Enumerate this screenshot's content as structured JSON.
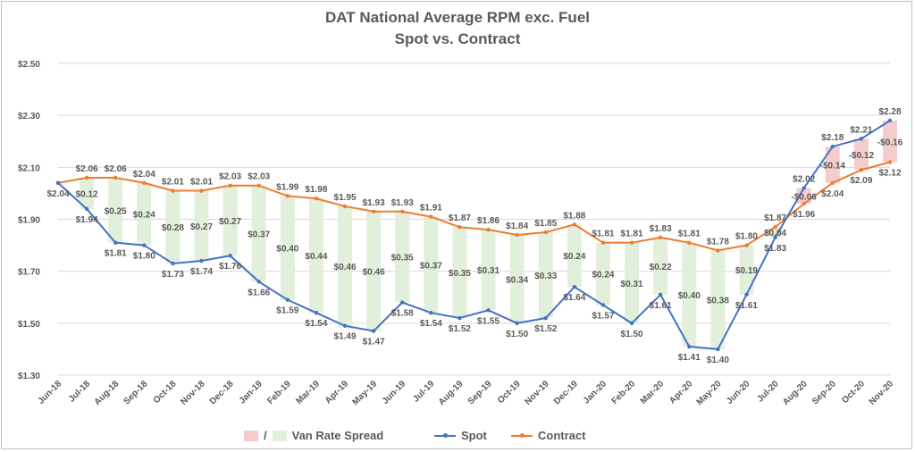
{
  "title": "DAT National Average RPM exc. Fuel",
  "subtitle": "Spot vs. Contract",
  "colors": {
    "spot": "#4472c4",
    "contract": "#ed7d31",
    "spread_positive": "#e2efda",
    "spread_negative": "#f4cccc",
    "grid": "#d9d9d9",
    "text": "#595959"
  },
  "legend": {
    "spread_sep": "/",
    "spread_label": "Van Rate Spread",
    "spot_label": "Spot",
    "contract_label": "Contract"
  },
  "chart_data": {
    "type": "line",
    "title": "DAT National Average RPM exc. Fuel",
    "subtitle": "Spot vs. Contract",
    "ylim": [
      1.3,
      2.5
    ],
    "y_ticks": [
      "$1.30",
      "$1.50",
      "$1.70",
      "$1.90",
      "$2.10",
      "$2.30",
      "$2.50"
    ],
    "y_tick_values": [
      1.3,
      1.5,
      1.7,
      1.9,
      2.1,
      2.3,
      2.5
    ],
    "grid": true,
    "legend_position": "bottom",
    "categories": [
      "Jun-18",
      "Jul-18",
      "Aug-18",
      "Sep-18",
      "Oct-18",
      "Nov-18",
      "Dec-18",
      "Jan-19",
      "Feb-19",
      "Mar-19",
      "Apr-19",
      "May-19",
      "Jun-19",
      "Jul-19",
      "Aug-19",
      "Sep-19",
      "Oct-19",
      "Nov-19",
      "Dec-19",
      "Jan-20",
      "Feb-20",
      "Mar-20",
      "Apr-20",
      "May-20",
      "Jun-20",
      "Jul-20",
      "Aug-20",
      "Sep-20",
      "Oct-20",
      "Nov-20"
    ],
    "series": [
      {
        "name": "Spot",
        "values": [
          2.04,
          1.94,
          1.81,
          1.8,
          1.73,
          1.74,
          1.76,
          1.66,
          1.59,
          1.54,
          1.49,
          1.47,
          1.58,
          1.54,
          1.52,
          1.55,
          1.5,
          1.52,
          1.64,
          1.57,
          1.5,
          1.61,
          1.41,
          1.4,
          1.61,
          1.83,
          2.02,
          2.18,
          2.21,
          2.28
        ],
        "labels": [
          "$2.04",
          "$1.94",
          "$1.81",
          "$1.80",
          "$1.73",
          "$1.74",
          "$1.76",
          "$1.66",
          "$1.59",
          "$1.54",
          "$1.49",
          "$1.47",
          "$1.58",
          "$1.54",
          "$1.52",
          "$1.55",
          "$1.50",
          "$1.52",
          "$1.64",
          "$1.57",
          "$1.50",
          "$1.61",
          "$1.41",
          "$1.40",
          "$1.61",
          "$1.83",
          "$2.02",
          "$2.18",
          "$2.21",
          "$2.28"
        ]
      },
      {
        "name": "Contract",
        "values": [
          2.04,
          2.06,
          2.06,
          2.04,
          2.01,
          2.01,
          2.03,
          2.03,
          1.99,
          1.98,
          1.95,
          1.93,
          1.93,
          1.91,
          1.87,
          1.86,
          1.84,
          1.85,
          1.88,
          1.81,
          1.81,
          1.83,
          1.81,
          1.78,
          1.8,
          1.87,
          1.96,
          2.04,
          2.09,
          2.12
        ],
        "labels": [
          "",
          "$2.06",
          "$2.06",
          "$2.04",
          "$2.01",
          "$2.01",
          "$2.03",
          "$2.03",
          "$1.99",
          "$1.98",
          "$1.95",
          "$1.93",
          "$1.93",
          "$1.91",
          "$1.87",
          "$1.86",
          "$1.84",
          "$1.85",
          "$1.88",
          "$1.81",
          "$1.81",
          "$1.83",
          "$1.81",
          "$1.78",
          "$1.80",
          "$1.87",
          "$1.96",
          "$2.04",
          "$2.09",
          "$2.12"
        ]
      },
      {
        "name": "Van Rate Spread",
        "values": [
          0,
          0.12,
          0.25,
          0.24,
          0.28,
          0.27,
          0.27,
          0.37,
          0.4,
          0.44,
          0.46,
          0.46,
          0.35,
          0.37,
          0.35,
          0.31,
          0.34,
          0.33,
          0.24,
          0.24,
          0.31,
          0.22,
          0.4,
          0.38,
          0.19,
          0.04,
          -0.06,
          -0.14,
          -0.12,
          -0.16
        ],
        "labels": [
          "",
          "$0.12",
          "$0.25",
          "$0.24",
          "$0.28",
          "$0.27",
          "$0.27",
          "$0.37",
          "$0.40",
          "$0.44",
          "$0.46",
          "$0.46",
          "$0.35",
          "$0.37",
          "$0.35",
          "$0.31",
          "$0.34",
          "$0.33",
          "$0.24",
          "$0.24",
          "$0.31",
          "$0.22",
          "$0.40",
          "$0.38",
          "$0.19",
          "$0.04",
          "-$0.06",
          "-$0.14",
          "-$0.12",
          "-$0.16"
        ]
      }
    ]
  }
}
